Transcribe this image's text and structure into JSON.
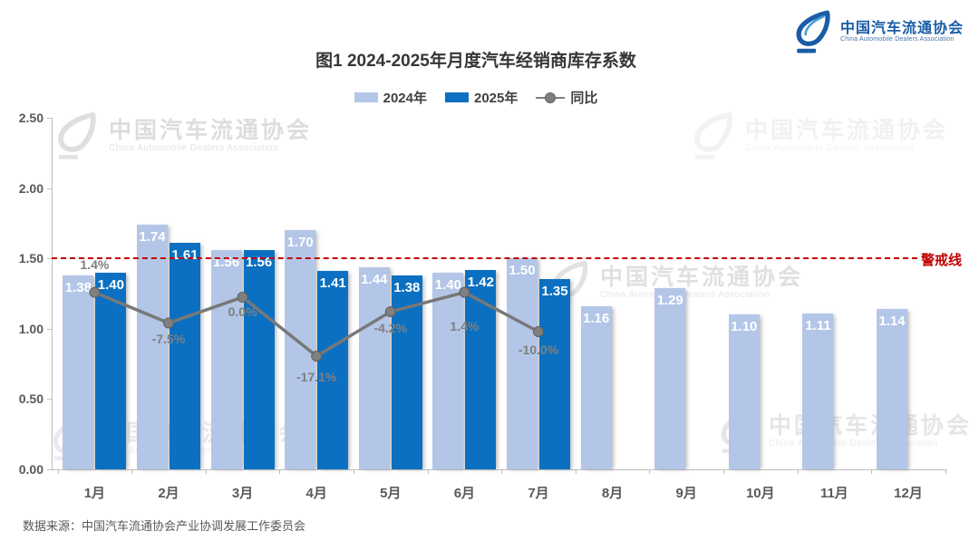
{
  "logo": {
    "name_cn": "中国汽车流通协会",
    "name_en": "China Automobile Dealers Association"
  },
  "watermark": {
    "text_cn": "中国汽车流通协会",
    "text_en": "China Automobile Dealers Association"
  },
  "source": "数据来源：中国汽车流通协会产业协调发展工作委员会",
  "chart_data": {
    "type": "bar",
    "subtype": "grouped-bars-with-line-overlay",
    "title": "图1  2024-2025年月度汽车经销商库存系数",
    "categories": [
      "1月",
      "2月",
      "3月",
      "4月",
      "5月",
      "6月",
      "7月",
      "8月",
      "9月",
      "10月",
      "11月",
      "12月"
    ],
    "series": [
      {
        "name": "2024年",
        "type": "bar",
        "color": "#b3c6e7",
        "values": [
          1.38,
          1.74,
          1.56,
          1.7,
          1.44,
          1.4,
          1.5,
          1.16,
          1.29,
          1.1,
          1.11,
          1.14
        ]
      },
      {
        "name": "2025年",
        "type": "bar",
        "color": "#0b70c1",
        "values": [
          1.4,
          1.61,
          1.56,
          1.41,
          1.38,
          1.42,
          1.35,
          null,
          null,
          null,
          null,
          null
        ]
      }
    ],
    "line": {
      "name": "同比",
      "type": "line",
      "color": "#787878",
      "unit": "%",
      "values": [
        1.4,
        -7.5,
        0.0,
        -17.1,
        -4.2,
        1.4,
        -10.0
      ],
      "labels": [
        "1.4%",
        "-7.5%",
        "0.0%",
        "-17.1%",
        "-4.2%",
        "1.4%",
        "-10.0%"
      ]
    },
    "threshold": {
      "value": 1.5,
      "label": "警戒线",
      "color": "#c00000"
    },
    "y_axis": {
      "min": 0,
      "max": 2.5,
      "ticks": [
        "0.00",
        "0.50",
        "1.00",
        "1.50",
        "2.00",
        "2.50"
      ]
    },
    "grid": "off",
    "legend_position": "top-center"
  }
}
